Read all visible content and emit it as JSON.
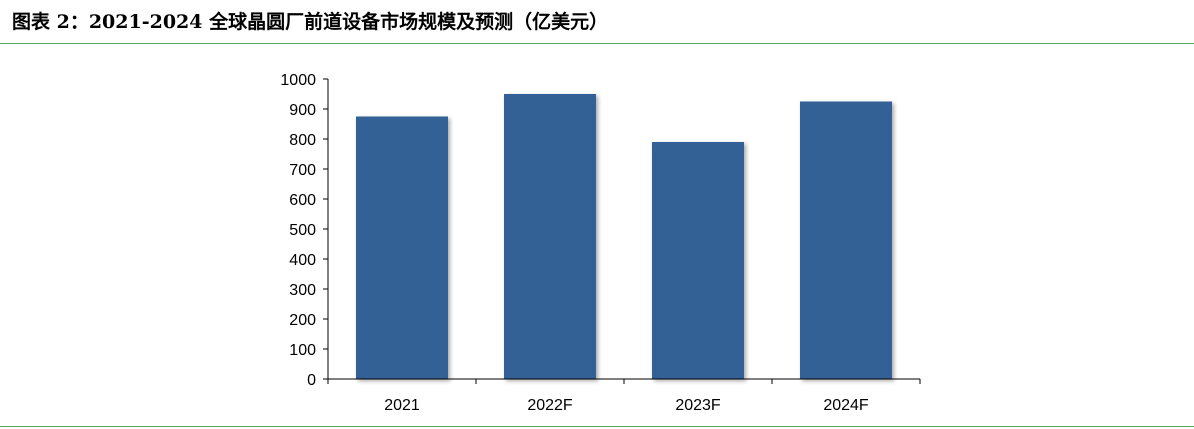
{
  "figure": {
    "title": "图表 2：2021-2024 全球晶圆厂前道设备市场规模及预测（亿美元）"
  },
  "colors": {
    "bar": "#336196",
    "rule": "#5aa66a",
    "axis": "#000000"
  },
  "chart_data": {
    "type": "bar",
    "title": "",
    "xlabel": "",
    "ylabel": "",
    "categories": [
      "2021",
      "2022F",
      "2023F",
      "2024F"
    ],
    "values": [
      875,
      950,
      790,
      925
    ],
    "ylim": [
      0,
      1000
    ],
    "yticks": [
      0,
      100,
      200,
      300,
      400,
      500,
      600,
      700,
      800,
      900,
      1000
    ],
    "grid": false,
    "legend": "none"
  }
}
